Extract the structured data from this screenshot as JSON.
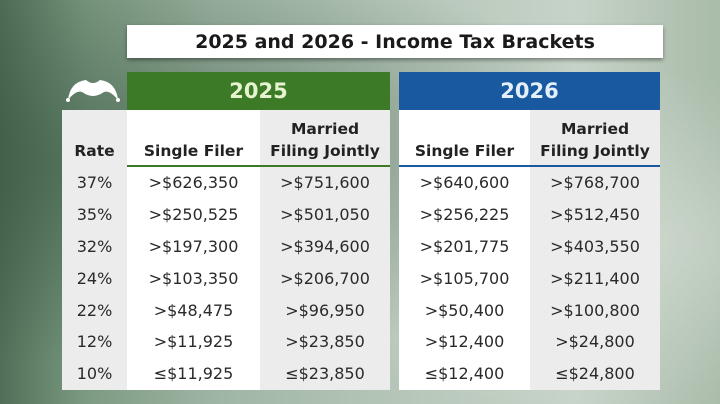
{
  "title": "2025 and 2026 - Income Tax Brackets",
  "colors": {
    "green": "#3d7a27",
    "blue": "#1859a0"
  },
  "logo": "jester-hat-icon",
  "rate_header": "Rate",
  "rates": [
    "37%",
    "35%",
    "32%",
    "24%",
    "22%",
    "12%",
    "10%"
  ],
  "y2025": {
    "label": "2025",
    "single_header": "Single Filer",
    "married_header_1": "Married",
    "married_header_2": "Filing Jointly",
    "single": [
      ">$626,350",
      ">$250,525",
      ">$197,300",
      ">$103,350",
      ">$48,475",
      ">$11,925",
      "≤$11,925"
    ],
    "married": [
      ">$751,600",
      ">$501,050",
      ">$394,600",
      ">$206,700",
      ">$96,950",
      ">$23,850",
      "≤$23,850"
    ]
  },
  "y2026": {
    "label": "2026",
    "single_header": "Single Filer",
    "married_header_1": "Married",
    "married_header_2": "Filing Jointly",
    "single": [
      ">$640,600",
      ">$256,225",
      ">$201,775",
      ">$105,700",
      ">$50,400",
      ">$12,400",
      "≤$12,400"
    ],
    "married": [
      ">$768,700",
      ">$512,450",
      ">$403,550",
      ">$211,400",
      ">$100,800",
      ">$24,800",
      "≤$24,800"
    ]
  }
}
